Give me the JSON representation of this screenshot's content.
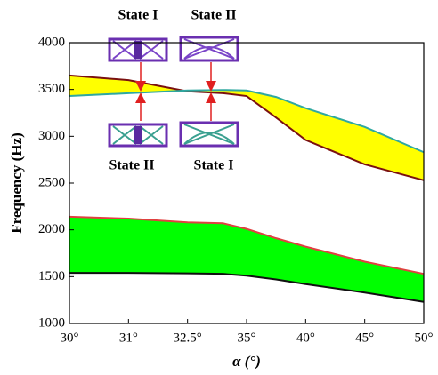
{
  "chart_data": {
    "type": "line",
    "xlabel": "α (°)",
    "ylabel": "Frequency (Hz)",
    "x": [
      30,
      31,
      32.5,
      34,
      35,
      37.5,
      40,
      45,
      50
    ],
    "series": [
      {
        "color": "#7a1010",
        "values": [
          3650,
          3600,
          3480,
          3460,
          3430,
          3200,
          2960,
          2700,
          2530
        ]
      },
      {
        "color": "#2fa8a0",
        "values": [
          3430,
          3460,
          3490,
          3495,
          3490,
          3420,
          3300,
          3100,
          2830
        ]
      },
      {
        "color": "#e04040",
        "values": [
          2140,
          2120,
          2080,
          2070,
          2010,
          1910,
          1820,
          1660,
          1530
        ]
      },
      {
        "color": "#101010",
        "values": [
          1540,
          1540,
          1535,
          1530,
          1510,
          1470,
          1420,
          1330,
          1230
        ]
      }
    ],
    "bands": [
      {
        "between": [
          0,
          1
        ],
        "color": "#ffff00"
      },
      {
        "between": [
          2,
          3
        ],
        "color": "#00ff00"
      }
    ],
    "xlim": [
      30,
      50
    ],
    "xticks": [
      {
        "value": 30,
        "label": "30°"
      },
      {
        "value": 31,
        "label": "31°"
      },
      {
        "value": 32.5,
        "label": "32.5°"
      },
      {
        "value": 35,
        "label": "35°"
      },
      {
        "value": 40,
        "label": "40°"
      },
      {
        "value": 45,
        "label": "45°"
      },
      {
        "value": 50,
        "label": "50°"
      }
    ],
    "ylim": [
      1000,
      4000
    ],
    "yticks": [
      1000,
      1500,
      2000,
      2500,
      3000,
      3500,
      4000
    ],
    "annotations": [
      "State I",
      "State II",
      "State II",
      "State I"
    ]
  }
}
